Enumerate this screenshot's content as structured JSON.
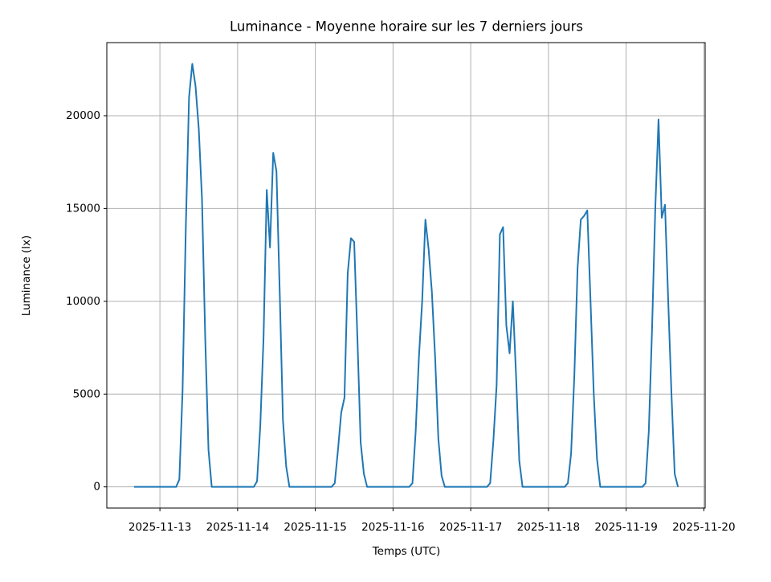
{
  "chart_data": {
    "type": "line",
    "title": "Luminance - Moyenne horaire sur les 7 derniers jours",
    "x_label": "Temps (UTC)",
    "y_label": "Luminance (lx)",
    "x": [
      "2025-11-12 16:00",
      "2025-11-12 17:00",
      "2025-11-12 18:00",
      "2025-11-12 19:00",
      "2025-11-12 20:00",
      "2025-11-12 21:00",
      "2025-11-12 22:00",
      "2025-11-12 23:00",
      "2025-11-13 00:00",
      "2025-11-13 01:00",
      "2025-11-13 02:00",
      "2025-11-13 03:00",
      "2025-11-13 04:00",
      "2025-11-13 05:00",
      "2025-11-13 06:00",
      "2025-11-13 07:00",
      "2025-11-13 08:00",
      "2025-11-13 09:00",
      "2025-11-13 10:00",
      "2025-11-13 11:00",
      "2025-11-13 12:00",
      "2025-11-13 13:00",
      "2025-11-13 14:00",
      "2025-11-13 15:00",
      "2025-11-13 16:00",
      "2025-11-13 17:00",
      "2025-11-13 18:00",
      "2025-11-13 19:00",
      "2025-11-13 20:00",
      "2025-11-13 21:00",
      "2025-11-13 22:00",
      "2025-11-13 23:00",
      "2025-11-14 00:00",
      "2025-11-14 01:00",
      "2025-11-14 02:00",
      "2025-11-14 03:00",
      "2025-11-14 04:00",
      "2025-11-14 05:00",
      "2025-11-14 06:00",
      "2025-11-14 07:00",
      "2025-11-14 08:00",
      "2025-11-14 09:00",
      "2025-11-14 10:00",
      "2025-11-14 11:00",
      "2025-11-14 12:00",
      "2025-11-14 13:00",
      "2025-11-14 14:00",
      "2025-11-14 15:00",
      "2025-11-14 16:00",
      "2025-11-14 17:00",
      "2025-11-14 18:00",
      "2025-11-14 19:00",
      "2025-11-14 20:00",
      "2025-11-14 21:00",
      "2025-11-14 22:00",
      "2025-11-14 23:00",
      "2025-11-15 00:00",
      "2025-11-15 01:00",
      "2025-11-15 02:00",
      "2025-11-15 03:00",
      "2025-11-15 04:00",
      "2025-11-15 05:00",
      "2025-11-15 06:00",
      "2025-11-15 07:00",
      "2025-11-15 08:00",
      "2025-11-15 09:00",
      "2025-11-15 10:00",
      "2025-11-15 11:00",
      "2025-11-15 12:00",
      "2025-11-15 13:00",
      "2025-11-15 14:00",
      "2025-11-15 15:00",
      "2025-11-15 16:00",
      "2025-11-15 17:00",
      "2025-11-15 18:00",
      "2025-11-15 19:00",
      "2025-11-15 20:00",
      "2025-11-15 21:00",
      "2025-11-15 22:00",
      "2025-11-15 23:00",
      "2025-11-16 00:00",
      "2025-11-16 01:00",
      "2025-11-16 02:00",
      "2025-11-16 03:00",
      "2025-11-16 04:00",
      "2025-11-16 05:00",
      "2025-11-16 06:00",
      "2025-11-16 07:00",
      "2025-11-16 08:00",
      "2025-11-16 09:00",
      "2025-11-16 10:00",
      "2025-11-16 11:00",
      "2025-11-16 12:00",
      "2025-11-16 13:00",
      "2025-11-16 14:00",
      "2025-11-16 15:00",
      "2025-11-16 16:00",
      "2025-11-16 17:00",
      "2025-11-16 18:00",
      "2025-11-16 19:00",
      "2025-11-16 20:00",
      "2025-11-16 21:00",
      "2025-11-16 22:00",
      "2025-11-16 23:00",
      "2025-11-17 00:00",
      "2025-11-17 01:00",
      "2025-11-17 02:00",
      "2025-11-17 03:00",
      "2025-11-17 04:00",
      "2025-11-17 05:00",
      "2025-11-17 06:00",
      "2025-11-17 07:00",
      "2025-11-17 08:00",
      "2025-11-17 09:00",
      "2025-11-17 10:00",
      "2025-11-17 11:00",
      "2025-11-17 12:00",
      "2025-11-17 13:00",
      "2025-11-17 14:00",
      "2025-11-17 15:00",
      "2025-11-17 16:00",
      "2025-11-17 17:00",
      "2025-11-17 18:00",
      "2025-11-17 19:00",
      "2025-11-17 20:00",
      "2025-11-17 21:00",
      "2025-11-17 22:00",
      "2025-11-17 23:00",
      "2025-11-18 00:00",
      "2025-11-18 01:00",
      "2025-11-18 02:00",
      "2025-11-18 03:00",
      "2025-11-18 04:00",
      "2025-11-18 05:00",
      "2025-11-18 06:00",
      "2025-11-18 07:00",
      "2025-11-18 08:00",
      "2025-11-18 09:00",
      "2025-11-18 10:00",
      "2025-11-18 11:00",
      "2025-11-18 12:00",
      "2025-11-18 13:00",
      "2025-11-18 14:00",
      "2025-11-18 15:00",
      "2025-11-18 16:00",
      "2025-11-18 17:00",
      "2025-11-18 18:00",
      "2025-11-18 19:00",
      "2025-11-18 20:00",
      "2025-11-18 21:00",
      "2025-11-18 22:00",
      "2025-11-18 23:00",
      "2025-11-19 00:00",
      "2025-11-19 01:00",
      "2025-11-19 02:00",
      "2025-11-19 03:00",
      "2025-11-19 04:00",
      "2025-11-19 05:00",
      "2025-11-19 06:00",
      "2025-11-19 07:00",
      "2025-11-19 08:00",
      "2025-11-19 09:00",
      "2025-11-19 10:00",
      "2025-11-19 11:00",
      "2025-11-19 12:00",
      "2025-11-19 13:00",
      "2025-11-19 14:00",
      "2025-11-19 15:00",
      "2025-11-19 16:00"
    ],
    "series": [
      {
        "color": "#1f77b4",
        "values": [
          0,
          0,
          0,
          0,
          0,
          0,
          0,
          0,
          0,
          0,
          0,
          0,
          0,
          0,
          400,
          5200,
          14000,
          21000,
          22800,
          21600,
          19300,
          15500,
          8000,
          2000,
          0,
          0,
          0,
          0,
          0,
          0,
          0,
          0,
          0,
          0,
          0,
          0,
          0,
          0,
          300,
          3300,
          8000,
          16000,
          12900,
          18000,
          17000,
          10500,
          3600,
          1100,
          0,
          0,
          0,
          0,
          0,
          0,
          0,
          0,
          0,
          0,
          0,
          0,
          0,
          0,
          200,
          2000,
          4000,
          4800,
          11500,
          13400,
          13200,
          8000,
          2400,
          700,
          0,
          0,
          0,
          0,
          0,
          0,
          0,
          0,
          0,
          0,
          0,
          0,
          0,
          0,
          200,
          3000,
          7000,
          10000,
          14400,
          12800,
          10500,
          7000,
          2600,
          600,
          0,
          0,
          0,
          0,
          0,
          0,
          0,
          0,
          0,
          0,
          0,
          0,
          0,
          0,
          200,
          2500,
          5500,
          13600,
          14000,
          8700,
          7200,
          10000,
          6000,
          1400,
          0,
          0,
          0,
          0,
          0,
          0,
          0,
          0,
          0,
          0,
          0,
          0,
          0,
          0,
          200,
          1800,
          6000,
          11800,
          14400,
          14600,
          14900,
          10000,
          5000,
          1500,
          0,
          0,
          0,
          0,
          0,
          0,
          0,
          0,
          0,
          0,
          0,
          0,
          0,
          0,
          200,
          3000,
          8500,
          15000,
          19800,
          14500,
          15200,
          10000,
          5000,
          700,
          0
        ]
      }
    ],
    "xlim": [
      "2025-11-12 07:36",
      "2025-11-20 00:24"
    ],
    "xticks": [
      "2025-11-13",
      "2025-11-14",
      "2025-11-15",
      "2025-11-16",
      "2025-11-17",
      "2025-11-18",
      "2025-11-19",
      "2025-11-20"
    ],
    "ylim": [
      -1140,
      23940
    ],
    "yticks": [
      0,
      5000,
      10000,
      15000,
      20000
    ],
    "grid": true
  }
}
